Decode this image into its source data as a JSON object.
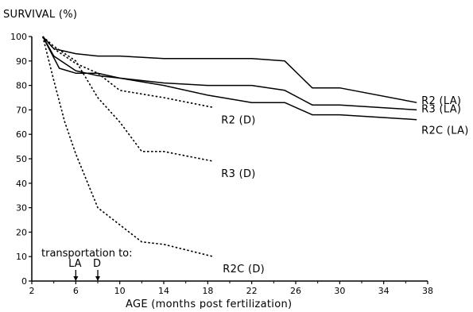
{
  "chart_data": {
    "type": "line",
    "ylabel": "SURVIVAL (%)",
    "xlabel": "AGE (months post fertilization)",
    "xlim": [
      2,
      38
    ],
    "ylim": [
      0,
      100
    ],
    "xticks": [
      2,
      6,
      10,
      14,
      18,
      22,
      26,
      30,
      34,
      38
    ],
    "yticks": [
      0,
      10,
      20,
      30,
      40,
      50,
      60,
      70,
      80,
      90,
      100
    ],
    "grid": false,
    "series": [
      {
        "name": "R2 (LA)",
        "style": "solid",
        "x": [
          3,
          4,
          6,
          8,
          10,
          14,
          18,
          22,
          25,
          27.5,
          30,
          37
        ],
        "y": [
          100,
          95,
          93,
          92,
          92,
          91,
          91,
          91,
          90,
          79,
          79,
          73
        ]
      },
      {
        "name": "R3 (LA)",
        "style": "solid",
        "x": [
          3,
          4,
          6,
          8,
          10,
          14,
          18,
          22,
          25,
          27.5,
          30,
          37
        ],
        "y": [
          100,
          92,
          86,
          84,
          83,
          81,
          80,
          80,
          78,
          72,
          72,
          70
        ]
      },
      {
        "name": "R2C (LA)",
        "style": "solid",
        "x": [
          3,
          4.5,
          6,
          8,
          10,
          14,
          18,
          22,
          25,
          27.5,
          30,
          37
        ],
        "y": [
          100,
          87,
          85,
          85,
          83,
          80,
          76,
          73,
          73,
          68,
          68,
          66
        ]
      },
      {
        "name": "R2 (D)",
        "style": "dashed",
        "x": [
          3,
          4,
          6,
          8,
          10,
          14,
          18.5
        ],
        "y": [
          100,
          95,
          89,
          85,
          78,
          75,
          71
        ]
      },
      {
        "name": "R3 (D)",
        "style": "dashed",
        "x": [
          3,
          4,
          6,
          8,
          10,
          12,
          14,
          18.5
        ],
        "y": [
          100,
          96,
          90,
          75,
          65,
          53,
          53,
          49
        ]
      },
      {
        "name": "R2C (D)",
        "style": "dashed",
        "x": [
          3,
          4,
          5,
          6,
          8,
          10,
          12,
          14,
          18.5
        ],
        "y": [
          100,
          82,
          65,
          52,
          30,
          23,
          16,
          15,
          10
        ]
      }
    ],
    "annotations": {
      "transport_label": "transportation to:",
      "markers": [
        {
          "label": "LA",
          "x": 6
        },
        {
          "label": "D",
          "x": 8
        }
      ]
    },
    "colors": {
      "lines": "#000000",
      "background": "#ffffff"
    }
  }
}
